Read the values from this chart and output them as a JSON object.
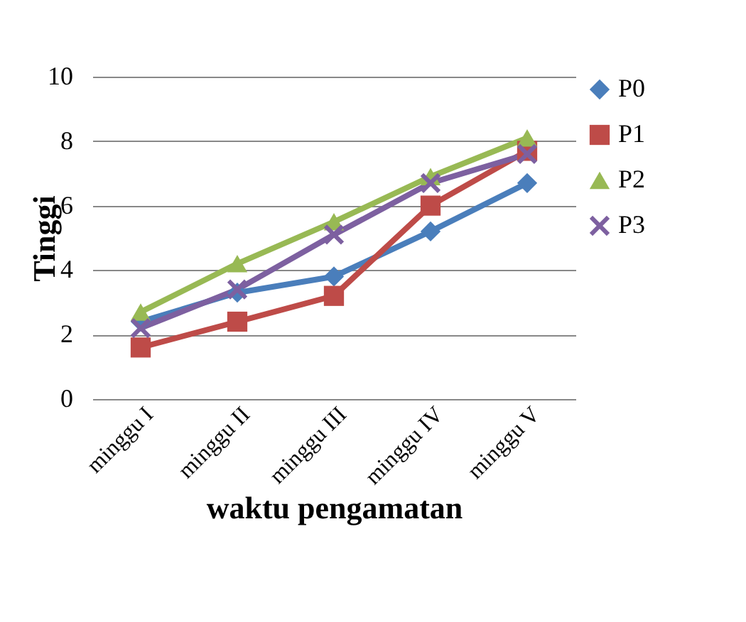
{
  "chart_data": {
    "type": "line",
    "xlabel": "waktu pengamatan",
    "ylabel": "Tinggi",
    "categories": [
      "minggu I",
      "minggu II",
      "minggu III",
      "minggu IV",
      "minggu V"
    ],
    "series": [
      {
        "name": "P0",
        "color": "#4a7ebb",
        "marker": "diamond",
        "values": [
          2.4,
          3.3,
          3.8,
          5.2,
          6.7
        ]
      },
      {
        "name": "P1",
        "color": "#be4b48",
        "marker": "square",
        "values": [
          1.6,
          2.4,
          3.2,
          6.0,
          7.7
        ]
      },
      {
        "name": "P2",
        "color": "#98b954",
        "marker": "triangle",
        "values": [
          2.7,
          4.2,
          5.5,
          6.9,
          8.1
        ]
      },
      {
        "name": "P3",
        "color": "#7d60a0",
        "marker": "cross",
        "values": [
          2.2,
          3.4,
          5.1,
          6.7,
          7.6
        ]
      }
    ],
    "ylim": [
      0,
      10
    ],
    "yticks": [
      0,
      2,
      4,
      6,
      8,
      10
    ],
    "grid": "y",
    "legend": "right",
    "line_style": "solid"
  }
}
